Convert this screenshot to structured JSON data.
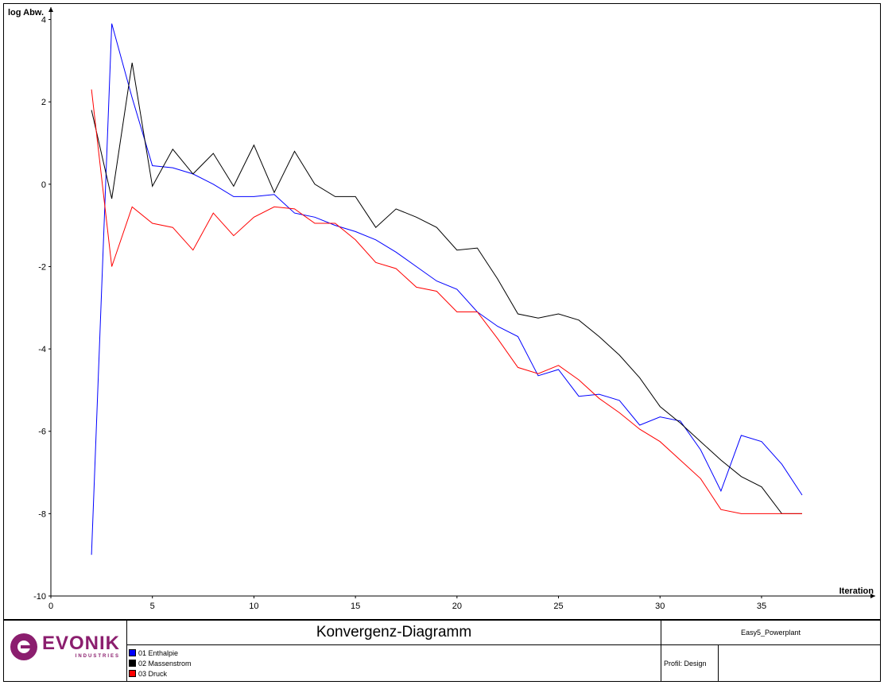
{
  "chart_data": {
    "type": "line",
    "title": "Konvergenz-Diagramm",
    "xlabel": "Iteration",
    "ylabel": "log Abw.",
    "xlim": [
      0,
      40.6
    ],
    "ylim": [
      -10,
      4.3
    ],
    "xticks": [
      0,
      5,
      10,
      15,
      20,
      25,
      30,
      35
    ],
    "yticks": [
      4,
      2,
      0,
      -2,
      -4,
      -6,
      -8,
      -10
    ],
    "grid": false,
    "legend": "bottom-panel",
    "series": [
      {
        "name": "01 Enthalpie",
        "color": "#0000ff",
        "x": [
          2,
          3,
          4,
          5,
          6,
          7,
          8,
          9,
          10,
          11,
          12,
          13,
          14,
          15,
          16,
          17,
          18,
          19,
          20,
          21,
          22,
          23,
          24,
          25,
          26,
          27,
          28,
          29,
          30,
          31,
          32,
          33,
          34,
          35,
          36,
          37
        ],
        "y": [
          -9.0,
          3.9,
          2.1,
          0.45,
          0.4,
          0.25,
          0.0,
          -0.3,
          -0.3,
          -0.25,
          -0.7,
          -0.8,
          -1.0,
          -1.15,
          -1.35,
          -1.65,
          -2.0,
          -2.35,
          -2.55,
          -3.1,
          -3.45,
          -3.7,
          -4.65,
          -4.5,
          -5.15,
          -5.1,
          -5.25,
          -5.85,
          -5.65,
          -5.75,
          -6.45,
          -7.45,
          -6.1,
          -6.25,
          -6.8,
          -7.55
        ]
      },
      {
        "name": "02 Massenstrom",
        "color": "#000000",
        "x": [
          2,
          3,
          4,
          5,
          6,
          7,
          8,
          9,
          10,
          11,
          12,
          13,
          14,
          15,
          16,
          17,
          18,
          19,
          20,
          21,
          22,
          23,
          24,
          25,
          26,
          27,
          28,
          29,
          30,
          31,
          32,
          33,
          34,
          35,
          36,
          37
        ],
        "y": [
          1.8,
          -0.35,
          2.95,
          -0.05,
          0.85,
          0.25,
          0.75,
          -0.05,
          0.95,
          -0.2,
          0.8,
          0.0,
          -0.3,
          -0.3,
          -1.05,
          -0.6,
          -0.8,
          -1.05,
          -1.6,
          -1.55,
          -2.3,
          -3.15,
          -3.25,
          -3.15,
          -3.3,
          -3.7,
          -4.15,
          -4.7,
          -5.4,
          -5.8,
          -6.25,
          -6.7,
          -7.1,
          -7.35,
          -8.0,
          -8.0
        ]
      },
      {
        "name": "03 Druck",
        "color": "#ff0000",
        "x": [
          2,
          3,
          4,
          5,
          6,
          7,
          8,
          9,
          10,
          11,
          12,
          13,
          14,
          15,
          16,
          17,
          18,
          19,
          20,
          21,
          22,
          23,
          24,
          25,
          26,
          27,
          28,
          29,
          30,
          31,
          32,
          33,
          34,
          35,
          36,
          37
        ],
        "y": [
          2.3,
          -2.0,
          -0.55,
          -0.95,
          -1.05,
          -1.6,
          -0.7,
          -1.25,
          -0.8,
          -0.55,
          -0.6,
          -0.95,
          -0.95,
          -1.35,
          -1.9,
          -2.05,
          -2.5,
          -2.6,
          -3.1,
          -3.1,
          -3.75,
          -4.45,
          -4.6,
          -4.4,
          -4.75,
          -5.2,
          -5.55,
          -5.95,
          -6.25,
          -6.7,
          -7.15,
          -7.9,
          -8.0,
          -8.0,
          -8.0,
          -8.0
        ]
      }
    ]
  },
  "footer": {
    "title": "Konvergenz-Diagramm",
    "project": "Easy5_Powerplant",
    "profile": "Profil: Design",
    "logo_text": "EVONIK",
    "logo_sub": "INDUSTRIES",
    "brand_color": "#8b1e6e"
  }
}
